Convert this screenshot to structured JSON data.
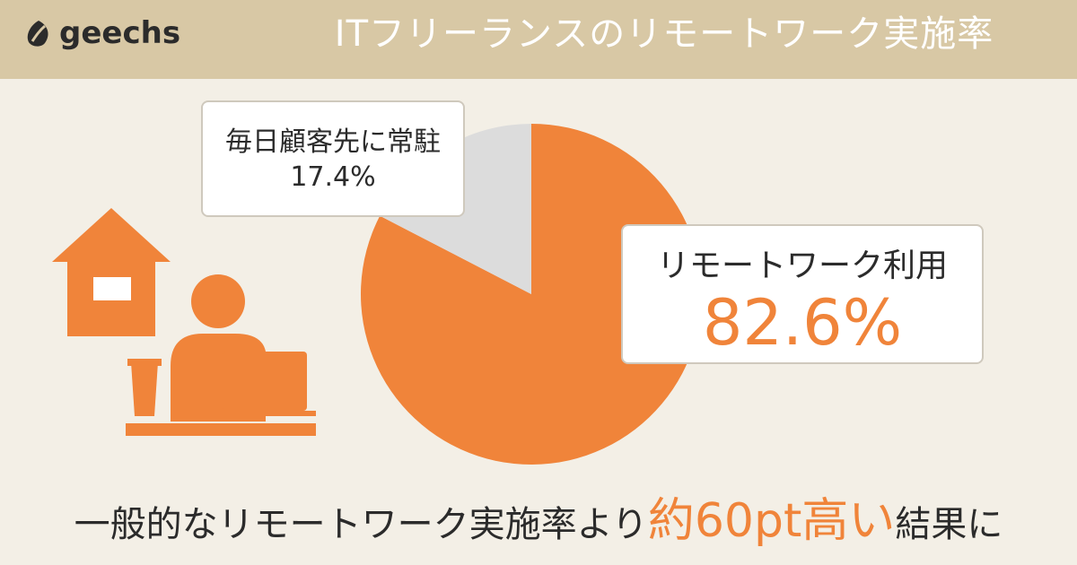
{
  "brand": {
    "name": "geechs"
  },
  "title": "ITフリーランスのリモートワーク実施率",
  "chart_data": {
    "type": "pie",
    "slices": [
      {
        "label": "リモートワーク利用",
        "value": 82.6,
        "display": "82.6%",
        "color": "#f0843a"
      },
      {
        "label": "毎日顧客先に常駐",
        "value": 17.4,
        "display": "17.4%",
        "color": "#dcdcdc"
      }
    ]
  },
  "footer": {
    "prefix": "一般的なリモートワーク実施率より",
    "highlight": "約60pt高い",
    "suffix": "結果に"
  },
  "colors": {
    "accent": "#f0843a",
    "header_bg": "#d8c8a5",
    "background": "#f3efe6",
    "gray_slice": "#dcdcdc"
  },
  "icons": [
    "leaf-logo-icon",
    "house-icon",
    "person-at-laptop-icon"
  ]
}
